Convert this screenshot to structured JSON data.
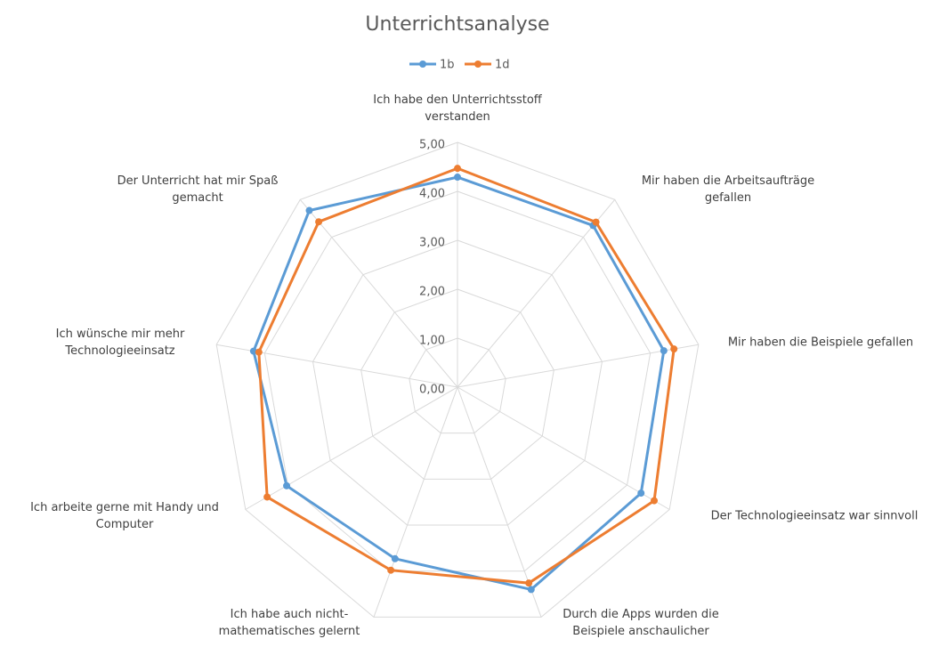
{
  "chart_data": {
    "type": "radar",
    "title": "Unterrichtsanalyse",
    "categories": [
      "Ich habe den Unterrichtsstoff verstanden",
      "Mir haben die Arbeitsaufträge gefallen",
      "Mir haben die Beispiele gefallen",
      "Der Technologieeinsatz war sinnvoll",
      "Durch die Apps wurden die Beispiele anschaulicher",
      "Ich habe auch nicht-mathematisches gelernt",
      "Ich arbeite gerne mit Handy und Computer",
      "Ich wünsche mir mehr Technologieeinsatz",
      "Der Unterricht hat mir Spaß gemacht"
    ],
    "series": [
      {
        "name": "1b",
        "color": "#5b9bd5",
        "values": [
          4.29,
          4.31,
          4.28,
          4.33,
          4.4,
          3.73,
          4.03,
          4.23,
          4.71
        ]
      },
      {
        "name": "1d",
        "color": "#ed7d31",
        "values": [
          4.47,
          4.4,
          4.49,
          4.64,
          4.26,
          3.98,
          4.49,
          4.12,
          4.41
        ]
      }
    ],
    "ylim": [
      0,
      5
    ],
    "yticks": [
      {
        "value": 0,
        "label": "0,00"
      },
      {
        "value": 1,
        "label": "1,00"
      },
      {
        "value": 2,
        "label": "2,00"
      },
      {
        "value": 3,
        "label": "3,00"
      },
      {
        "value": 4,
        "label": "4,00"
      },
      {
        "value": 5,
        "label": "5,00"
      }
    ],
    "grid": true,
    "legend": "top"
  }
}
